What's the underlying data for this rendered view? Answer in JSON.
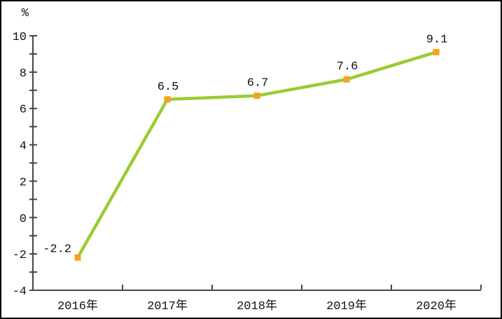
{
  "chart_data": {
    "type": "line",
    "title": "",
    "unit_label": "%",
    "categories": [
      "2016年",
      "2017年",
      "2018年",
      "2019年",
      "2020年"
    ],
    "values": [
      -2.2,
      6.5,
      6.7,
      7.6,
      9.1
    ],
    "data_labels": [
      "-2.2",
      "6.5",
      "6.7",
      "7.6",
      "9.1"
    ],
    "data_label_positions": [
      "left",
      "above",
      "above",
      "above",
      "above"
    ],
    "xlabel": "",
    "ylabel": "%",
    "ylim": [
      -4,
      10
    ],
    "y_major_ticks": [
      -4,
      -2,
      0,
      2,
      4,
      6,
      8,
      10
    ],
    "y_tick_labels": [
      "-4",
      "-2",
      "0",
      "2",
      "4",
      "6",
      "8",
      "10"
    ],
    "y_minor_step": 1,
    "grid": false,
    "legend": "none",
    "colors": {
      "line": "#99CC33",
      "marker": "#F8A11C",
      "axis": "#454545",
      "text": "#111111",
      "background": "#FFFFFF",
      "frame": "#000000"
    }
  }
}
